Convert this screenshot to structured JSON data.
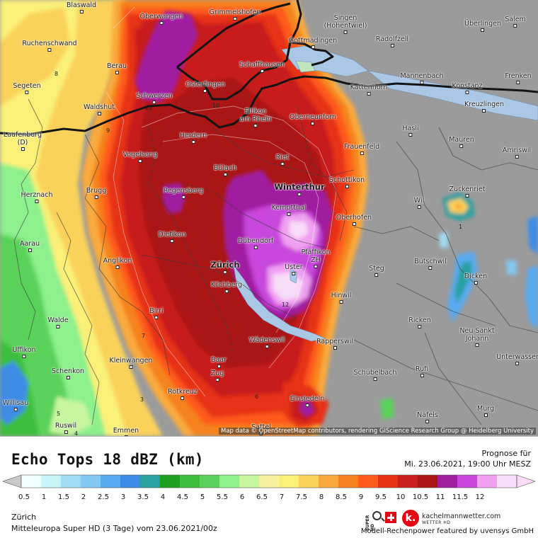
{
  "map": {
    "attribution": "Map data © OpenStreetMap contributors, rendering GIScience Research Group @ Heidelberg University",
    "places": [
      {
        "name": "Blaswald",
        "big": false
      },
      {
        "name": "Oberwangen",
        "big": false
      },
      {
        "name": "Grimmelshofen",
        "big": false
      },
      {
        "name": "Singen\n(Hohentwiel)",
        "big": false
      },
      {
        "name": "Überlingen",
        "big": false
      },
      {
        "name": "Salem",
        "big": false
      },
      {
        "name": "Gottmadingen",
        "big": false
      },
      {
        "name": "Radolfzell",
        "big": false
      },
      {
        "name": "Ruchenschwand",
        "big": false
      },
      {
        "name": "Berau",
        "big": false
      },
      {
        "name": "Schaffhausen",
        "big": false
      },
      {
        "name": "Segeten",
        "big": false
      },
      {
        "name": "Osterfingen",
        "big": false
      },
      {
        "name": "Mannenbach",
        "big": false
      },
      {
        "name": "Konstanz",
        "big": false
      },
      {
        "name": "Frenken",
        "big": false
      },
      {
        "name": "Kattenhorn",
        "big": false
      },
      {
        "name": "Schwerzen",
        "big": false
      },
      {
        "name": "Waldshut",
        "big": false
      },
      {
        "name": "Ellikon\nam Rhein",
        "big": false
      },
      {
        "name": "Oberneunforn",
        "big": false
      },
      {
        "name": "Kreuzlingen",
        "big": false
      },
      {
        "name": "Laufenburg\n(D)",
        "big": false
      },
      {
        "name": "Herdern",
        "big": false
      },
      {
        "name": "Hasli",
        "big": false
      },
      {
        "name": "Mauren",
        "big": false
      },
      {
        "name": "Frauenfeld",
        "big": false
      },
      {
        "name": "Amriswil",
        "big": false
      },
      {
        "name": "Vogelsang",
        "big": false
      },
      {
        "name": "Riet",
        "big": false
      },
      {
        "name": "Bülach",
        "big": false
      },
      {
        "name": "Winterthur",
        "big": true
      },
      {
        "name": "Schottikon",
        "big": false
      },
      {
        "name": "Brugg",
        "big": false
      },
      {
        "name": "Regensberg",
        "big": false
      },
      {
        "name": "Zuckenriet",
        "big": false
      },
      {
        "name": "Herznach",
        "big": false
      },
      {
        "name": "Kemptthal",
        "big": false
      },
      {
        "name": "Wil",
        "big": false
      },
      {
        "name": "Oberhofen",
        "big": false
      },
      {
        "name": "Aarau",
        "big": false
      },
      {
        "name": "Dietikon",
        "big": false
      },
      {
        "name": "Dübendorf",
        "big": false
      },
      {
        "name": "Pfäffikon\nZH",
        "big": false
      },
      {
        "name": "Anglikon",
        "big": false
      },
      {
        "name": "Zürich",
        "big": true
      },
      {
        "name": "Uster",
        "big": false
      },
      {
        "name": "Steg",
        "big": false
      },
      {
        "name": "Bütschwil",
        "big": false
      },
      {
        "name": "Kilchberg",
        "big": false
      },
      {
        "name": "Dicken",
        "big": false
      },
      {
        "name": "Hinwil",
        "big": false
      },
      {
        "name": "Birri",
        "big": false
      },
      {
        "name": "Walde",
        "big": false
      },
      {
        "name": "Ricken",
        "big": false
      },
      {
        "name": "Wädenswil",
        "big": false
      },
      {
        "name": "Neu Sankt\nJohann",
        "big": false
      },
      {
        "name": "Rapperswil",
        "big": false
      },
      {
        "name": "Uffikon",
        "big": false
      },
      {
        "name": "Kleinwangen",
        "big": false
      },
      {
        "name": "Baar",
        "big": false
      },
      {
        "name": "Unterwasser",
        "big": false
      },
      {
        "name": "Schenkon",
        "big": false
      },
      {
        "name": "Zug",
        "big": false
      },
      {
        "name": "Rufi",
        "big": false
      },
      {
        "name": "Schübelbach",
        "big": false
      },
      {
        "name": "Willisau",
        "big": false
      },
      {
        "name": "Rotkreuz",
        "big": false
      },
      {
        "name": "Einsiedeln",
        "big": false
      },
      {
        "name": "Murg",
        "big": false
      },
      {
        "name": "Näfels",
        "big": false
      },
      {
        "name": "Ruswil",
        "big": false
      },
      {
        "name": "Sattel",
        "big": false
      },
      {
        "name": "Emmen",
        "big": false
      }
    ],
    "contours": [
      "11",
      "12",
      "10",
      "9",
      "8",
      "7",
      "6",
      "5",
      "4",
      "3",
      "1"
    ]
  },
  "legend": {
    "title": "Echo Tops 18 dBZ (km)",
    "forecast_label": "Prognose für",
    "forecast_date": "Mi. 23.06.2021, 19:00 Uhr MESZ",
    "ticks": [
      "0.5",
      "1",
      "1.5",
      "2",
      "2.5",
      "3",
      "3.5",
      "4",
      "4.5",
      "5",
      "5.5",
      "6",
      "6.5",
      "7",
      "7.5",
      "8",
      "8.5",
      "9",
      "9.5",
      "10",
      "10.5",
      "11",
      "11.5",
      "12"
    ],
    "colors": [
      "#f0ffff",
      "#c8f4f8",
      "#a0dcf5",
      "#82c8f0",
      "#5aaaf0",
      "#3c8ce6",
      "#28a0a0",
      "#1ea01e",
      "#3cbe3c",
      "#5ad25a",
      "#8cf08c",
      "#c8f5a0",
      "#f5f0a0",
      "#faf078",
      "#fad25a",
      "#faaa3c",
      "#f5821e",
      "#ff5a1e",
      "#e63214",
      "#c81e1e",
      "#aa1414",
      "#a01ea0",
      "#c846dc",
      "#f0a0f0",
      "#f8dcf8"
    ],
    "below_color": "#c8c8c8"
  },
  "footer": {
    "region": "Zürich",
    "model": "Mitteleuropa Super HD (3 Tage) vom 23.06.2021/00z",
    "brand": "kachelmannwetter.com",
    "brand_sub": "WETTER HD",
    "brand_letter": "k.",
    "superhd": "SUPER HD",
    "powered": "Modell-Rechenpower featured by uvensys GmbH"
  }
}
